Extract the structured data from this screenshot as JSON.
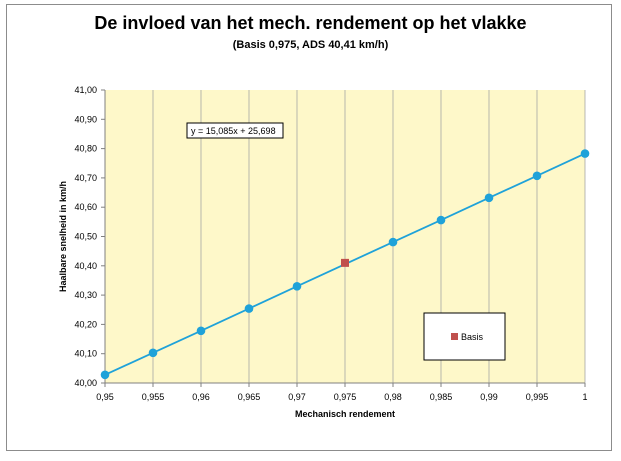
{
  "chart_data": {
    "type": "scatter",
    "title": "De invloed van het mech. rendement op het vlakke",
    "subtitle": "(Basis 0,975, ADS 40,41 km/h)",
    "xlabel": "Mechanisch rendement",
    "ylabel": "Haalbare snelheid in km/h",
    "xlim": [
      0.95,
      1.0
    ],
    "ylim": [
      40.0,
      41.0
    ],
    "x_ticks": [
      "0,95",
      "0,955",
      "0,96",
      "0,965",
      "0,97",
      "0,975",
      "0,98",
      "0,985",
      "0,99",
      "0,995",
      "1"
    ],
    "y_ticks": [
      "40,00",
      "40,10",
      "40,20",
      "40,30",
      "40,40",
      "40,50",
      "40,60",
      "40,70",
      "40,80",
      "40,90",
      "41,00"
    ],
    "grid": "vertical",
    "legend_position": "bottom-right",
    "trendline_label": "y = 15,085x + 25,698",
    "series": [
      {
        "values": [
          [
            0.95,
            40.028
          ],
          [
            0.955,
            40.103
          ],
          [
            0.96,
            40.178
          ],
          [
            0.965,
            40.254
          ],
          [
            0.97,
            40.33
          ],
          [
            0.98,
            40.481
          ],
          [
            0.985,
            40.556
          ],
          [
            0.99,
            40.632
          ],
          [
            0.995,
            40.707
          ],
          [
            1.0,
            40.783
          ]
        ],
        "color": "#1fa2d9",
        "marker": "circle",
        "line": true
      },
      {
        "name": "Basis",
        "values": [
          [
            0.975,
            40.41
          ]
        ],
        "color": "#c0504d",
        "marker": "square",
        "line": false
      }
    ],
    "plot_background": "#fef8c9"
  }
}
